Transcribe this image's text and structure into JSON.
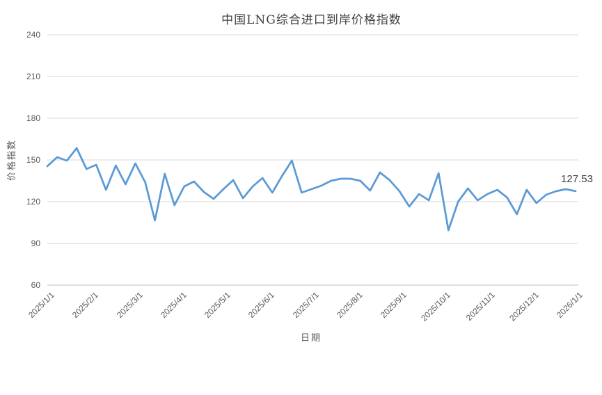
{
  "chart_data": {
    "type": "line",
    "title": "中国LNG综合进口到岸价格指数",
    "xlabel": "日期",
    "ylabel": "价格指数",
    "ylim": [
      60,
      240
    ],
    "yticks": [
      60,
      90,
      120,
      150,
      180,
      210,
      240
    ],
    "x_tick_labels": [
      "2025/1/1",
      "2025/2/1",
      "2025/3/1",
      "2025/4/1",
      "2025/5/1",
      "2025/6/1",
      "2025/7/1",
      "2025/8/1",
      "2025/9/1",
      "2025/10/1",
      "2025/11/1",
      "2025/12/1",
      "2026/1/1"
    ],
    "grid": "horizontal",
    "legend": "none",
    "end_label": "127.53",
    "series": [
      {
        "name": "中国LNG综合进口到岸价格指数",
        "cadence": "weekly",
        "values": [
          145.5,
          152,
          149.5,
          158.5,
          143.5,
          146.5,
          128.5,
          146,
          132.5,
          147.5,
          134,
          106.5,
          140,
          117.5,
          131,
          134.5,
          127,
          122,
          129,
          135.5,
          122.5,
          131,
          137,
          126.5,
          138.5,
          149.5,
          126.5,
          129,
          131.5,
          135,
          136.5,
          136.5,
          135,
          128,
          141,
          135.5,
          127.5,
          116.5,
          125.5,
          121,
          140.5,
          99.5,
          120,
          129.5,
          121,
          125.5,
          128.5,
          123,
          111,
          128.5,
          119,
          125,
          127.5,
          129,
          127.53
        ]
      }
    ]
  },
  "colors": {
    "line": "#5b9bd5",
    "gridline": "#d9d9d9",
    "axis_line": "#bfbfbf",
    "tick_text": "#595959",
    "title_text": "#404040",
    "background": "#ffffff"
  }
}
